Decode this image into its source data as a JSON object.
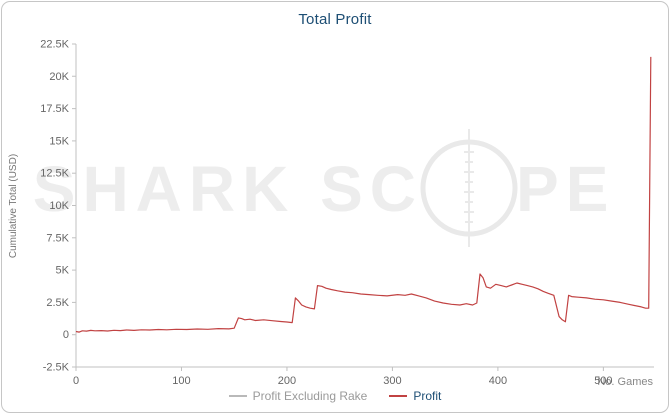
{
  "title": "Total Profit",
  "y_axis_label": "Cumulative Total (USD)",
  "x_axis_label": "No. Games",
  "watermark": {
    "left": "SHARK SC",
    "right": "PE"
  },
  "colors": {
    "title": "#1d4e74",
    "axis": "#c0c0c0",
    "tick_text": "#666666",
    "axis_label_text": "#777777",
    "profit_line": "#c14242",
    "watermark": "#ededed"
  },
  "legend": [
    {
      "label": "Profit Excluding Rake",
      "swatch_color": "#b9b9b9",
      "text_color": "#9a9a9a"
    },
    {
      "label": "Profit",
      "swatch_color": "#c14242",
      "text_color": "#1d4e74"
    }
  ],
  "chart_data": {
    "type": "line",
    "title": "Total Profit",
    "xlabel": "No. Games",
    "ylabel": "Cumulative Total (USD)",
    "xlim": [
      0,
      548
    ],
    "ylim": [
      -2500,
      22500
    ],
    "grid": false,
    "legend_position": "bottom",
    "x_ticks": [
      0,
      100,
      200,
      300,
      400,
      500
    ],
    "y_ticks": [
      {
        "value": -2500,
        "label": "-2.5K"
      },
      {
        "value": 0,
        "label": "0"
      },
      {
        "value": 2500,
        "label": "2.5K"
      },
      {
        "value": 5000,
        "label": "5K"
      },
      {
        "value": 7500,
        "label": "7.5K"
      },
      {
        "value": 10000,
        "label": "10K"
      },
      {
        "value": 12500,
        "label": "12.5K"
      },
      {
        "value": 15000,
        "label": "15K"
      },
      {
        "value": 17500,
        "label": "17.5K"
      },
      {
        "value": 20000,
        "label": "20K"
      },
      {
        "value": 22500,
        "label": "22.5K"
      }
    ],
    "series": [
      {
        "name": "Profit",
        "color": "#c14242",
        "points": [
          [
            0,
            250
          ],
          [
            3,
            200
          ],
          [
            6,
            300
          ],
          [
            10,
            280
          ],
          [
            14,
            330
          ],
          [
            18,
            300
          ],
          [
            24,
            320
          ],
          [
            30,
            290
          ],
          [
            36,
            340
          ],
          [
            42,
            320
          ],
          [
            48,
            360
          ],
          [
            55,
            330
          ],
          [
            62,
            380
          ],
          [
            70,
            360
          ],
          [
            78,
            400
          ],
          [
            86,
            380
          ],
          [
            95,
            420
          ],
          [
            105,
            400
          ],
          [
            115,
            440
          ],
          [
            125,
            420
          ],
          [
            135,
            470
          ],
          [
            145,
            450
          ],
          [
            150,
            500
          ],
          [
            154,
            1300
          ],
          [
            157,
            1250
          ],
          [
            160,
            1150
          ],
          [
            165,
            1200
          ],
          [
            170,
            1100
          ],
          [
            178,
            1150
          ],
          [
            186,
            1080
          ],
          [
            194,
            1020
          ],
          [
            200,
            980
          ],
          [
            205,
            940
          ],
          [
            208,
            2850
          ],
          [
            211,
            2600
          ],
          [
            214,
            2300
          ],
          [
            218,
            2150
          ],
          [
            222,
            2050
          ],
          [
            226,
            2000
          ],
          [
            229,
            3800
          ],
          [
            233,
            3750
          ],
          [
            237,
            3600
          ],
          [
            242,
            3500
          ],
          [
            248,
            3400
          ],
          [
            255,
            3300
          ],
          [
            262,
            3250
          ],
          [
            270,
            3150
          ],
          [
            278,
            3100
          ],
          [
            286,
            3050
          ],
          [
            295,
            3000
          ],
          [
            305,
            3100
          ],
          [
            312,
            3050
          ],
          [
            318,
            3150
          ],
          [
            325,
            3000
          ],
          [
            332,
            2850
          ],
          [
            340,
            2600
          ],
          [
            348,
            2450
          ],
          [
            356,
            2350
          ],
          [
            364,
            2300
          ],
          [
            370,
            2400
          ],
          [
            376,
            2300
          ],
          [
            380,
            2450
          ],
          [
            383,
            4700
          ],
          [
            386,
            4400
          ],
          [
            389,
            3700
          ],
          [
            393,
            3600
          ],
          [
            398,
            3900
          ],
          [
            403,
            3800
          ],
          [
            408,
            3700
          ],
          [
            413,
            3850
          ],
          [
            418,
            4000
          ],
          [
            423,
            3900
          ],
          [
            428,
            3800
          ],
          [
            433,
            3700
          ],
          [
            438,
            3550
          ],
          [
            443,
            3350
          ],
          [
            448,
            3200
          ],
          [
            453,
            3050
          ],
          [
            458,
            1400
          ],
          [
            461,
            1150
          ],
          [
            464,
            1000
          ],
          [
            467,
            3050
          ],
          [
            470,
            2950
          ],
          [
            476,
            2900
          ],
          [
            484,
            2850
          ],
          [
            492,
            2750
          ],
          [
            500,
            2700
          ],
          [
            508,
            2600
          ],
          [
            516,
            2500
          ],
          [
            524,
            2350
          ],
          [
            530,
            2250
          ],
          [
            536,
            2150
          ],
          [
            540,
            2050
          ],
          [
            543,
            2050
          ],
          [
            545,
            21500
          ]
        ]
      }
    ]
  }
}
